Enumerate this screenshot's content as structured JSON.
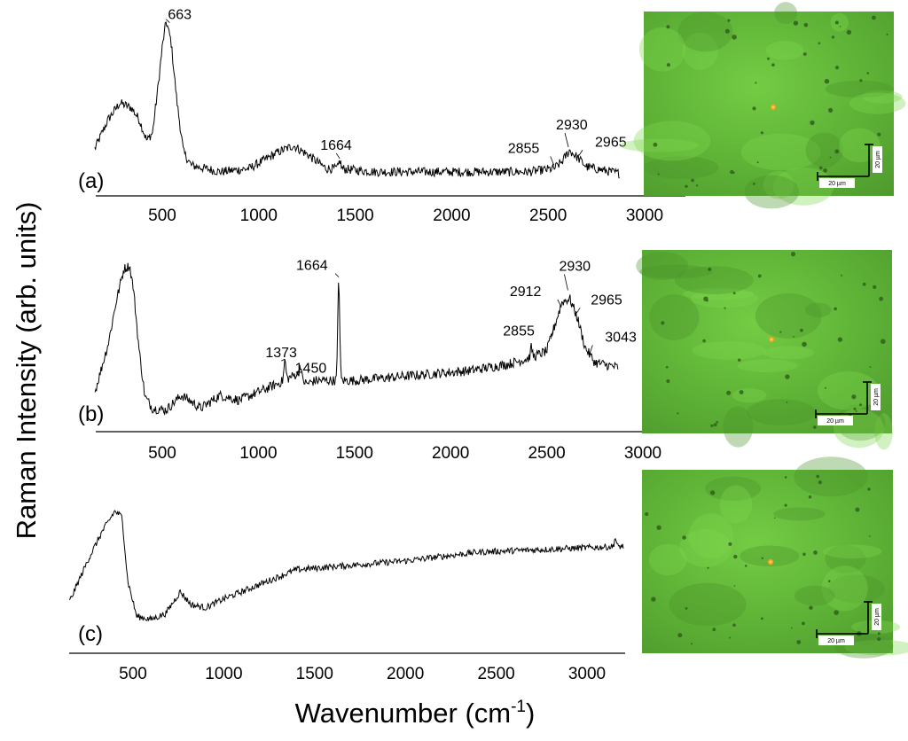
{
  "figure": {
    "ylabel": "Raman Intensity (arb. units)",
    "xlabel": "Wavenumber (cm",
    "xlabel_sup": "-1",
    "xlabel_close": ")"
  },
  "chart_data": [
    {
      "type": "line",
      "panel_label": "(a)",
      "xlim": [
        150,
        3250
      ],
      "xticks": [
        500,
        1000,
        1500,
        2000,
        2500,
        3000
      ],
      "ylim": [
        0,
        1
      ],
      "x_range": [
        150,
        2870
      ],
      "profile": [
        [
          150,
          0.2
        ],
        [
          220,
          0.38
        ],
        [
          280,
          0.48
        ],
        [
          340,
          0.45
        ],
        [
          380,
          0.38
        ],
        [
          420,
          0.25
        ],
        [
          450,
          0.3
        ],
        [
          480,
          0.6
        ],
        [
          500,
          0.82
        ],
        [
          520,
          0.98
        ],
        [
          545,
          0.86
        ],
        [
          575,
          0.5
        ],
        [
          610,
          0.18
        ],
        [
          650,
          0.1
        ],
        [
          800,
          0.06
        ],
        [
          950,
          0.08
        ],
        [
          1100,
          0.18
        ],
        [
          1180,
          0.22
        ],
        [
          1260,
          0.16
        ],
        [
          1350,
          0.08
        ],
        [
          1420,
          0.08
        ],
        [
          1600,
          0.06
        ],
        [
          2000,
          0.06
        ],
        [
          2400,
          0.06
        ],
        [
          2530,
          0.08
        ],
        [
          2570,
          0.12
        ],
        [
          2610,
          0.19
        ],
        [
          2650,
          0.15
        ],
        [
          2700,
          0.09
        ],
        [
          2870,
          0.05
        ]
      ],
      "spikes": [
        [
          1420,
          0.05
        ]
      ],
      "noise": 0.028,
      "annotations": [
        {
          "label": "663",
          "x": 520,
          "y": 0.98
        },
        {
          "label": "1664",
          "x": 1420,
          "y": 0.13
        },
        {
          "label": "2855",
          "x": 2530,
          "y": 0.09
        },
        {
          "label": "2930",
          "x": 2605,
          "y": 0.2
        },
        {
          "label": "2965",
          "x": 2660,
          "y": 0.15
        }
      ]
    },
    {
      "type": "line",
      "panel_label": "(b)",
      "xlim": [
        150,
        3250
      ],
      "xticks": [
        500,
        1000,
        1500,
        2000,
        2500,
        3000
      ],
      "ylim": [
        0,
        1
      ],
      "x_range": [
        150,
        2870
      ],
      "profile": [
        [
          150,
          0.15
        ],
        [
          220,
          0.45
        ],
        [
          260,
          0.7
        ],
        [
          300,
          0.9
        ],
        [
          330,
          0.92
        ],
        [
          350,
          0.78
        ],
        [
          380,
          0.4
        ],
        [
          410,
          0.12
        ],
        [
          450,
          0.05
        ],
        [
          520,
          0.04
        ],
        [
          600,
          0.13
        ],
        [
          640,
          0.1
        ],
        [
          700,
          0.05
        ],
        [
          800,
          0.13
        ],
        [
          900,
          0.1
        ],
        [
          1000,
          0.15
        ],
        [
          1100,
          0.2
        ],
        [
          1200,
          0.26
        ],
        [
          1250,
          0.2
        ],
        [
          1300,
          0.22
        ],
        [
          1400,
          0.22
        ],
        [
          1500,
          0.22
        ],
        [
          1800,
          0.25
        ],
        [
          2100,
          0.28
        ],
        [
          2300,
          0.32
        ],
        [
          2420,
          0.36
        ],
        [
          2500,
          0.4
        ],
        [
          2540,
          0.55
        ],
        [
          2580,
          0.7
        ],
        [
          2620,
          0.72
        ],
        [
          2660,
          0.6
        ],
        [
          2700,
          0.42
        ],
        [
          2750,
          0.33
        ],
        [
          2870,
          0.3
        ]
      ],
      "spikes": [
        [
          1138,
          0.12
        ],
        [
          1218,
          0.08
        ],
        [
          1418,
          0.62
        ],
        [
          2420,
          0.06
        ]
      ],
      "noise": 0.03,
      "annotations": [
        {
          "label": "1373",
          "x": 1138,
          "y": 0.34
        },
        {
          "label": "1450",
          "x": 1218,
          "y": 0.3
        },
        {
          "label": "1664",
          "x": 1418,
          "y": 0.84
        },
        {
          "label": "2855",
          "x": 2540,
          "y": 0.55
        },
        {
          "label": "2912",
          "x": 2575,
          "y": 0.66
        },
        {
          "label": "2930",
          "x": 2610,
          "y": 0.76
        },
        {
          "label": "2965",
          "x": 2655,
          "y": 0.62
        },
        {
          "label": "3043",
          "x": 2720,
          "y": 0.36
        }
      ]
    },
    {
      "type": "line",
      "panel_label": "(c)",
      "xlim": [
        150,
        3250
      ],
      "xticks": [
        500,
        1000,
        1500,
        2000,
        2500,
        3000
      ],
      "ylim": [
        0,
        1
      ],
      "x_range": [
        150,
        3200
      ],
      "profile": [
        [
          150,
          0.2
        ],
        [
          250,
          0.48
        ],
        [
          330,
          0.68
        ],
        [
          400,
          0.82
        ],
        [
          440,
          0.78
        ],
        [
          470,
          0.35
        ],
        [
          520,
          0.1
        ],
        [
          600,
          0.08
        ],
        [
          680,
          0.12
        ],
        [
          760,
          0.27
        ],
        [
          820,
          0.18
        ],
        [
          900,
          0.16
        ],
        [
          1000,
          0.22
        ],
        [
          1200,
          0.32
        ],
        [
          1400,
          0.42
        ],
        [
          1600,
          0.44
        ],
        [
          2000,
          0.48
        ],
        [
          2400,
          0.54
        ],
        [
          2800,
          0.56
        ],
        [
          3200,
          0.58
        ]
      ],
      "spikes": [
        [
          3155,
          0.06
        ]
      ],
      "noise": 0.022,
      "annotations": []
    }
  ],
  "micrographs": [
    {
      "scalebar_v": "20 µm",
      "scalebar_h": "20 µm"
    },
    {
      "scalebar_v": "20 µm",
      "scalebar_h": "20 µm"
    },
    {
      "scalebar_v": "20 µm",
      "scalebar_h": "20 µm"
    }
  ]
}
